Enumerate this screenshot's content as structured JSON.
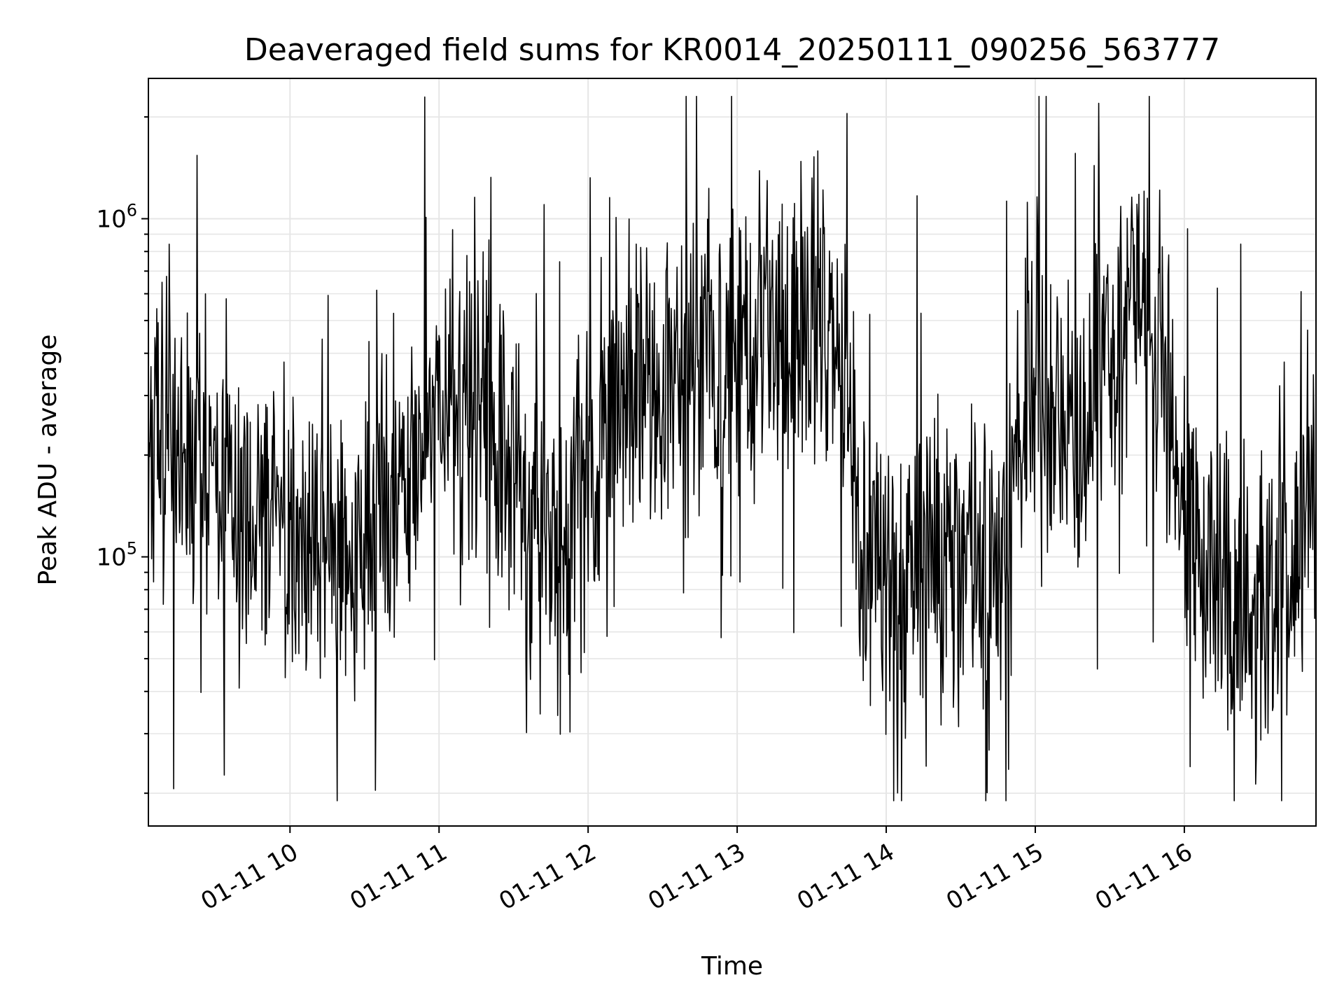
{
  "chart_data": {
    "type": "line",
    "title": "Deaveraged field sums for KR0014_20250111_090256_563777",
    "xlabel": "Time",
    "ylabel": "Peak ADU - average",
    "yscale": "log",
    "grid": true,
    "line_color": "#000000",
    "grid_color": "#e6e6e6",
    "xlim": [
      "2025-01-11 09:03",
      "2025-01-11 16:53"
    ],
    "ylim": [
      16000,
      2600000
    ],
    "x_ticks": [
      {
        "value": "2025-01-11 10:00",
        "label": "01-11 10"
      },
      {
        "value": "2025-01-11 11:00",
        "label": "01-11 11"
      },
      {
        "value": "2025-01-11 12:00",
        "label": "01-11 12"
      },
      {
        "value": "2025-01-11 13:00",
        "label": "01-11 13"
      },
      {
        "value": "2025-01-11 14:00",
        "label": "01-11 14"
      },
      {
        "value": "2025-01-11 15:00",
        "label": "01-11 15"
      },
      {
        "value": "2025-01-11 16:00",
        "label": "01-11 16"
      }
    ],
    "y_ticks": [
      {
        "value": 100000,
        "base": "10",
        "exp": "5"
      },
      {
        "value": 1000000,
        "base": "10",
        "exp": "6"
      }
    ],
    "series": [
      {
        "x": [
          "2025-01-11 09:03",
          "2025-01-11 09:10",
          "2025-01-11 09:20",
          "2025-01-11 09:30",
          "2025-01-11 09:40",
          "2025-01-11 09:50",
          "2025-01-11 10:00",
          "2025-01-11 10:10",
          "2025-01-11 10:20",
          "2025-01-11 10:30",
          "2025-01-11 10:40",
          "2025-01-11 10:50",
          "2025-01-11 11:00",
          "2025-01-11 11:10",
          "2025-01-11 11:20",
          "2025-01-11 11:30",
          "2025-01-11 11:40",
          "2025-01-11 11:50",
          "2025-01-11 12:00",
          "2025-01-11 12:10",
          "2025-01-11 12:20",
          "2025-01-11 12:30",
          "2025-01-11 12:40",
          "2025-01-11 12:50",
          "2025-01-11 13:00",
          "2025-01-11 13:10",
          "2025-01-11 13:20",
          "2025-01-11 13:30",
          "2025-01-11 13:40",
          "2025-01-11 13:50",
          "2025-01-11 14:00",
          "2025-01-11 14:10",
          "2025-01-11 14:20",
          "2025-01-11 14:30",
          "2025-01-11 14:40",
          "2025-01-11 14:50",
          "2025-01-11 15:00",
          "2025-01-11 15:10",
          "2025-01-11 15:20",
          "2025-01-11 15:30",
          "2025-01-11 15:40",
          "2025-01-11 15:50",
          "2025-01-11 16:00",
          "2025-01-11 16:10",
          "2025-01-11 16:20",
          "2025-01-11 16:30",
          "2025-01-11 16:40",
          "2025-01-11 16:53"
        ],
        "y": [
          250000,
          210000,
          190000,
          160000,
          120000,
          130000,
          120000,
          110000,
          115000,
          110000,
          140000,
          210000,
          330000,
          300000,
          260000,
          170000,
          110000,
          90000,
          200000,
          300000,
          330000,
          320000,
          360000,
          380000,
          400000,
          430000,
          480000,
          600000,
          450000,
          110000,
          70000,
          80000,
          85000,
          80000,
          90000,
          140000,
          350000,
          250000,
          230000,
          480000,
          600000,
          520000,
          120000,
          110000,
          70000,
          60000,
          80000,
          180000
        ]
      }
    ]
  }
}
